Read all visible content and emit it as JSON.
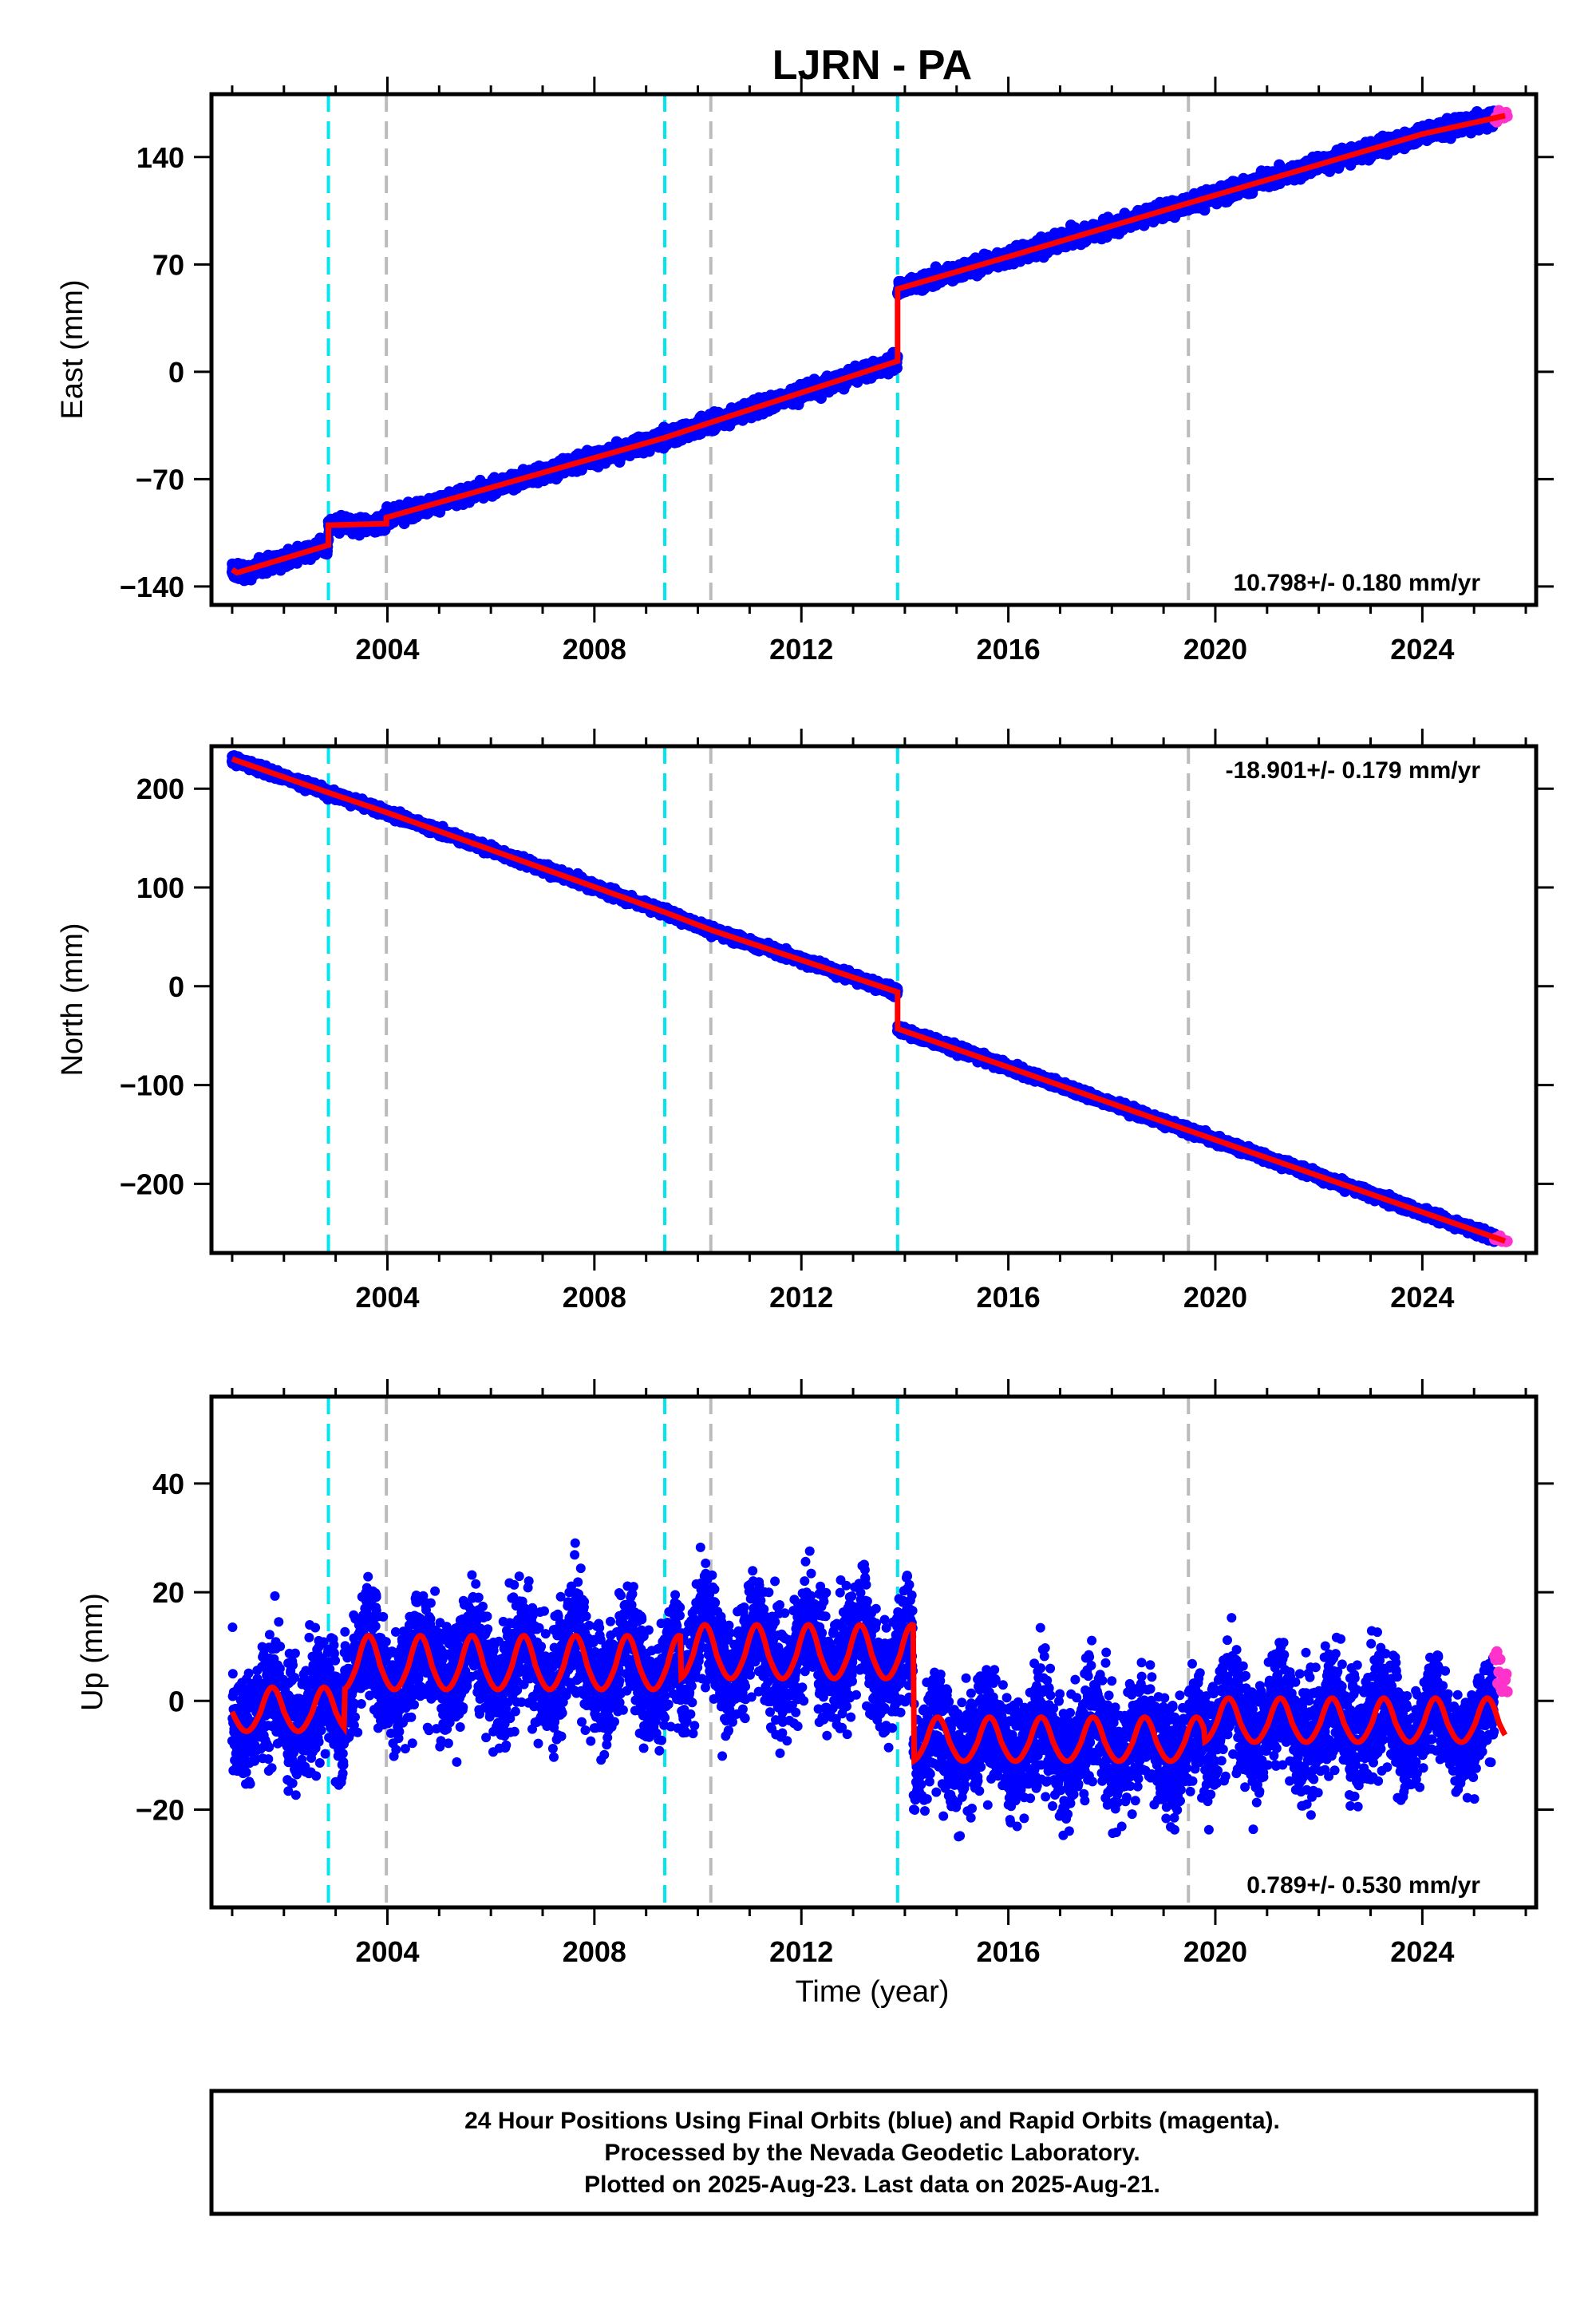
{
  "title": "LJRN - PA",
  "colors": {
    "final": "#0000ff",
    "rapid": "#ff33cc",
    "model": "#ff0000",
    "antenna": "#00e5ee",
    "equipment": "#bbbbbb"
  },
  "x_axis": {
    "label": "Time (year)",
    "range": [
      2000.6,
      2026.2
    ],
    "ticks": [
      2004,
      2008,
      2012,
      2016,
      2020,
      2024
    ],
    "tick_labels": [
      "2004",
      "2008",
      "2012",
      "2016",
      "2020",
      "2024"
    ],
    "minor_ticks": [
      2001,
      2002,
      2003,
      2005,
      2006,
      2007,
      2009,
      2010,
      2011,
      2013,
      2014,
      2015,
      2017,
      2018,
      2019,
      2021,
      2022,
      2023,
      2025,
      2026
    ]
  },
  "chart_data": [
    {
      "type": "scatter",
      "component": "East",
      "ylabel": "East (mm)",
      "ylim": [
        -152,
        181
      ],
      "yticks": [
        -140,
        -70,
        0,
        70,
        140
      ],
      "ytick_labels": [
        "−140",
        "−70",
        "0",
        "70",
        "140"
      ],
      "rate": "10.798+/- 0.180 mm/yr",
      "vlines_cyan": [
        2002.86,
        2009.36,
        2013.86
      ],
      "vlines_gray": [
        2003.98,
        2010.25,
        2019.48
      ],
      "model_points": [
        [
          2001.0,
          -129
        ],
        [
          2001.1,
          -131
        ],
        [
          2002.86,
          -113
        ],
        [
          2002.86,
          -100
        ],
        [
          2003.98,
          -99
        ],
        [
          2003.98,
          -95
        ],
        [
          2009.36,
          -43
        ],
        [
          2010.25,
          -33
        ],
        [
          2013.86,
          7
        ],
        [
          2013.86,
          54
        ],
        [
          2016.0,
          75
        ],
        [
          2019.48,
          110
        ],
        [
          2024.0,
          155
        ],
        [
          2025.6,
          167
        ]
      ],
      "noise": 3.5,
      "rapid_range": [
        2025.4,
        2025.65
      ]
    },
    {
      "type": "scatter",
      "component": "North",
      "ylabel": "North (mm)",
      "ylim": [
        -270,
        243
      ],
      "yticks": [
        -200,
        -100,
        0,
        100,
        200
      ],
      "ytick_labels": [
        "−200",
        "−100",
        "0",
        "100",
        "200"
      ],
      "rate": "-18.901+/- 0.179 mm/yr",
      "vlines_cyan": [
        2002.86,
        2009.36,
        2013.86
      ],
      "vlines_gray": [
        2003.98,
        2010.25,
        2019.48
      ],
      "model_points": [
        [
          2001.0,
          230
        ],
        [
          2002.86,
          196
        ],
        [
          2003.98,
          176
        ],
        [
          2009.36,
          75
        ],
        [
          2010.25,
          57
        ],
        [
          2013.86,
          -6
        ],
        [
          2013.86,
          -43
        ],
        [
          2016.0,
          -82
        ],
        [
          2019.48,
          -146
        ],
        [
          2025.6,
          -258
        ]
      ],
      "noise": 3.0,
      "rapid_range": [
        2025.4,
        2025.65
      ]
    },
    {
      "type": "scatter",
      "component": "Up",
      "ylabel": "Up (mm)",
      "ylim": [
        -38,
        56
      ],
      "yticks": [
        -20,
        0,
        20,
        40
      ],
      "ytick_labels": [
        "−20",
        "0",
        "20",
        "40"
      ],
      "rate": "0.789+/- 0.530 mm/yr",
      "vlines_cyan": [
        2002.86,
        2009.36,
        2013.86
      ],
      "vlines_gray": [
        2003.98,
        2010.25,
        2019.48
      ],
      "model_segments": [
        {
          "x0": 2001.0,
          "x1": 2002.86,
          "base": -2,
          "amp": 4.5
        },
        {
          "x0": 2002.86,
          "x1": 2009.36,
          "base": 6.5,
          "amp": 5.5
        },
        {
          "x0": 2009.36,
          "x1": 2013.86,
          "base": 8.5,
          "amp": 5.5
        },
        {
          "x0": 2013.86,
          "x1": 2019.48,
          "base": -7.5,
          "amp": 4.5
        },
        {
          "x0": 2019.48,
          "x1": 2025.6,
          "base": -4,
          "amp": 4.5
        }
      ],
      "noise": 7.5,
      "rapid_range": [
        2025.4,
        2025.65
      ]
    }
  ],
  "caption": {
    "lines": [
      "24 Hour Positions Using Final Orbits (blue) and Rapid Orbits (magenta).",
      "Processed by the Nevada Geodetic Laboratory.",
      "Plotted on 2025-Aug-23. Last data on 2025-Aug-21."
    ]
  }
}
